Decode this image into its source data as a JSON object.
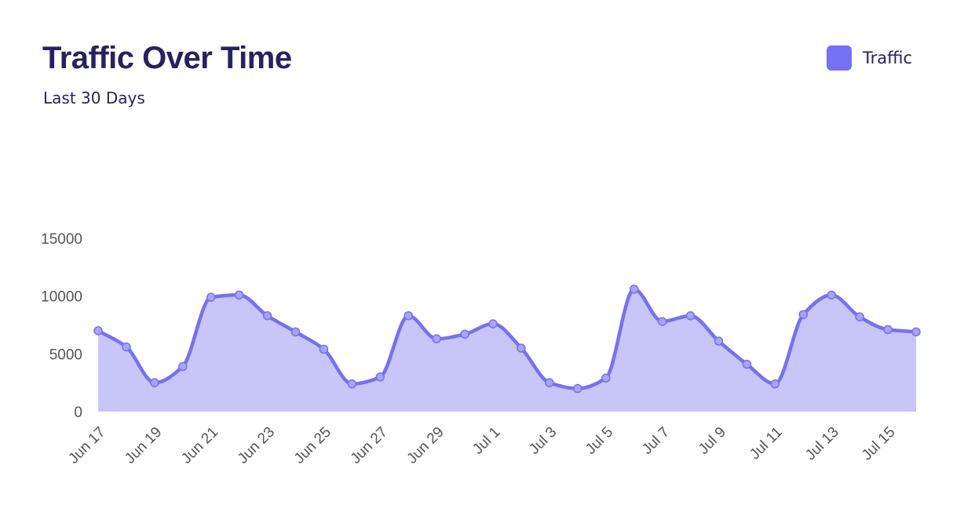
{
  "header": {
    "title": "Traffic Over Time",
    "subtitle": "Last 30  Days"
  },
  "legend": {
    "label": "Traffic",
    "color": "#7670F2"
  },
  "colors": {
    "line": "#7670F2",
    "fill": "#C8C5F8",
    "text": "#262261"
  },
  "chart_data": {
    "type": "area",
    "title": "Traffic Over Time",
    "subtitle": "Last 30  Days",
    "x": [
      "Jun 17",
      "Jun 18",
      "Jun 19",
      "Jun 20",
      "Jun 21",
      "Jun 22",
      "Jun 23",
      "Jun 24",
      "Jun 25",
      "Jun 26",
      "Jun 27",
      "Jun 28",
      "Jun 29",
      "Jun 30",
      "Jul 1",
      "Jul 2",
      "Jul 3",
      "Jul 4",
      "Jul 5",
      "Jul 6",
      "Jul 7",
      "Jul 8",
      "Jul 9",
      "Jul 10",
      "Jul 11",
      "Jul 12",
      "Jul 13",
      "Jul 14",
      "Jul 15",
      "Jul 16"
    ],
    "x_tick_labels": [
      "Jun 17",
      "Jun 19",
      "Jun 21",
      "Jun 23",
      "Jun 25",
      "Jun 27",
      "Jun 29",
      "Jul 1",
      "Jul 3",
      "Jul 5",
      "Jul 7",
      "Jul 9",
      "Jul 11",
      "Jul 13",
      "Jul 15"
    ],
    "series": [
      {
        "name": "Traffic",
        "values": [
          7000,
          5600,
          2500,
          3900,
          9900,
          10100,
          8300,
          6900,
          5400,
          2400,
          3000,
          8300,
          6300,
          6700,
          7600,
          5500,
          2500,
          2000,
          2900,
          10600,
          7800,
          8300,
          6100,
          4100,
          2400,
          8400,
          10100,
          8200,
          7100,
          6900
        ]
      }
    ],
    "y_ticks": [
      0,
      5000,
      10000,
      15000
    ],
    "ylim": [
      0,
      15000
    ],
    "grid": false,
    "legend_position": "top-right"
  }
}
